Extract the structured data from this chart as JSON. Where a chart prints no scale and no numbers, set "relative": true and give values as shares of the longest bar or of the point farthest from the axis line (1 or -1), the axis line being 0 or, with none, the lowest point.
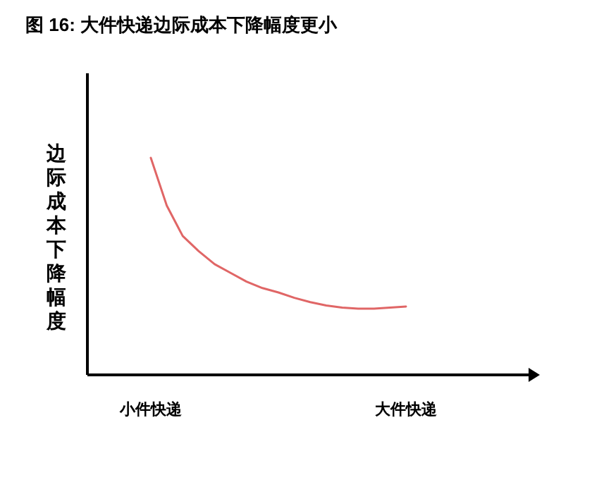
{
  "chart_data": {
    "type": "line",
    "title": "图  16:  大件快递边际成本下降幅度更小",
    "ylabel": "边际成本下降幅度",
    "relative": true,
    "categories": [
      "小件快递",
      null,
      null,
      null,
      null,
      null,
      null,
      null,
      null,
      null,
      null,
      null,
      null,
      null,
      null,
      null,
      "大件快递"
    ],
    "series": [
      {
        "color": "#e06666",
        "values": [
          1.0,
          0.78,
          0.64,
          0.57,
          0.51,
          0.47,
          0.43,
          0.4,
          0.38,
          0.355,
          0.335,
          0.32,
          0.31,
          0.305,
          0.305,
          0.31,
          0.315
        ]
      }
    ]
  }
}
